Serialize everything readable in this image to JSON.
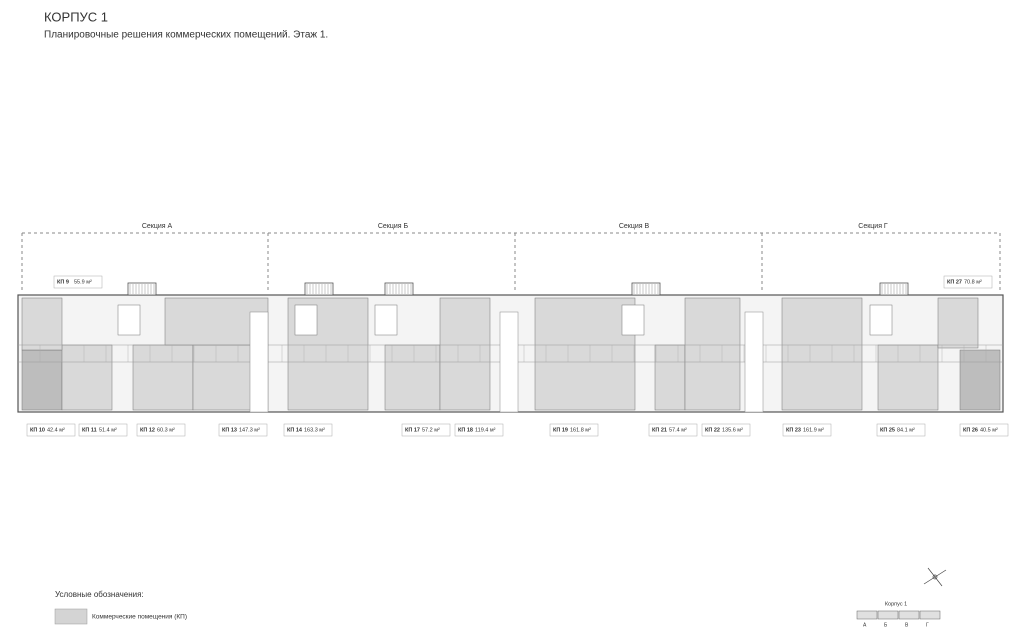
{
  "header": {
    "title": "КОРПУС 1",
    "subtitle": "Планировочные решения коммерческих помещений. Этаж 1."
  },
  "sections": [
    "Секция А",
    "Секция Б",
    "Секция В",
    "Секция Г"
  ],
  "units": [
    {
      "name": "КП 9",
      "area": "55.9 м²"
    },
    {
      "name": "КП 27",
      "area": "70.8 м²"
    },
    {
      "name": "КП 10",
      "area": "42.4 м²"
    },
    {
      "name": "КП 11",
      "area": "51.4 м²"
    },
    {
      "name": "КП 12",
      "area": "60.3 м²"
    },
    {
      "name": "КП 13",
      "area": "147.3 м²"
    },
    {
      "name": "КП 14",
      "area": "163.3 м²"
    },
    {
      "name": "КП 17",
      "area": "57.2 м²"
    },
    {
      "name": "КП 18",
      "area": "119.4 м²"
    },
    {
      "name": "КП 19",
      "area": "161.8 м²"
    },
    {
      "name": "КП 21",
      "area": "57.4 м²"
    },
    {
      "name": "КП 22",
      "area": "135.6 м²"
    },
    {
      "name": "КП 23",
      "area": "161.9 м²"
    },
    {
      "name": "КП 25",
      "area": "84.1 м²"
    },
    {
      "name": "КП 26",
      "area": "40.5 м²"
    }
  ],
  "legend": {
    "title": "Условные обозначения:",
    "items": [
      "Коммерческие помещения (КП)"
    ]
  },
  "key_plan": {
    "title": "Корпус 1",
    "sections": [
      "А",
      "Б",
      "В",
      "Г"
    ]
  }
}
